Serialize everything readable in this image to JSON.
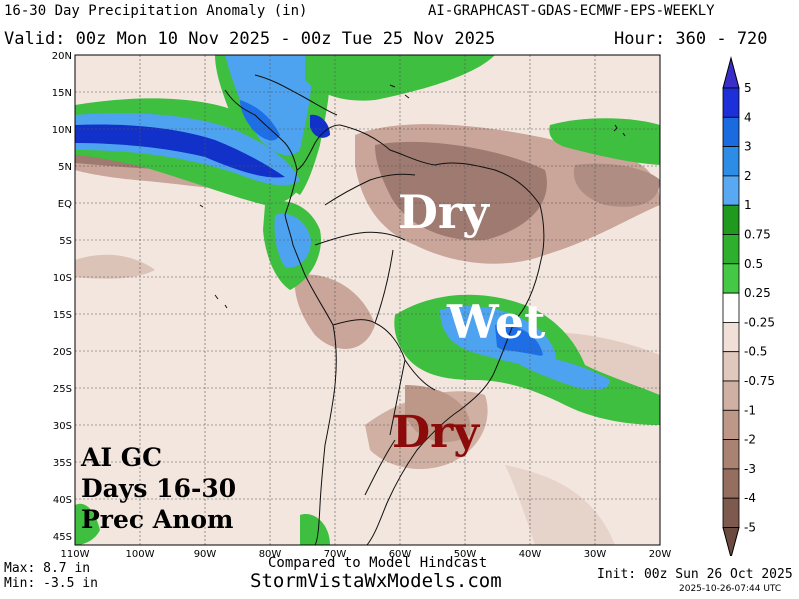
{
  "header": {
    "title": "16-30 Day Precipitation Anomaly (in)",
    "model": "AI-GRAPHCAST-GDAS-ECMWF-EPS-WEEKLY",
    "valid": "Valid: 00z Mon 10 Nov 2025 - 00z Tue 25 Nov 2025",
    "hour": "Hour: 360 - 720"
  },
  "map": {
    "lat_labels": [
      "20N",
      "15N",
      "10N",
      "5N",
      "EQ",
      "5S",
      "10S",
      "15S",
      "20S",
      "25S",
      "30S",
      "35S",
      "40S",
      "45S"
    ],
    "lon_labels": [
      "110W",
      "100W",
      "90W",
      "80W",
      "70W",
      "60W",
      "50W",
      "40W",
      "30W",
      "20W"
    ],
    "annotations": {
      "dry_north": "Dry",
      "wet": "Wet",
      "dry_south": "Dry"
    },
    "inset_lines": [
      "AI GC",
      "Days 16-30",
      "Prec Anom"
    ],
    "colors": {
      "dry_light": "#efdcd2",
      "dry_mid": "#c9a59a",
      "dry_dark": "#9e7a70",
      "wet_green": "#3fbf3f",
      "wet_darkgreen": "#1f9a1f",
      "wet_lightblue": "#4ea3f0",
      "wet_blue": "#1e6ee6",
      "wet_darkblue": "#1131c8"
    }
  },
  "colorbar": {
    "labels": [
      "5",
      "4",
      "3",
      "2",
      "1",
      "0.75",
      "0.5",
      "0.25",
      "-0.25",
      "-0.5",
      "-0.75",
      "-1",
      "-2",
      "-3",
      "-4",
      "-5"
    ],
    "colors": [
      "#1c2fd8",
      "#1a6be0",
      "#2d8ce6",
      "#59a9f2",
      "#1f9a1f",
      "#2eb02e",
      "#45c845",
      "#ffffff",
      "#f0e0d8",
      "#e0c8bc",
      "#cfb0a2",
      "#bd9888",
      "#aa8272",
      "#966e60",
      "#7e5a4e"
    ]
  },
  "footer": {
    "max": "Max: 8.7 in",
    "min": "Min: -3.5 in",
    "compared": "Compared to Model Hindcast",
    "site": "StormVistaWxModels.com",
    "init": "Init: 00z Sun 26 Oct 2025",
    "timestamp": "2025-10-26-07:44 UTC"
  }
}
